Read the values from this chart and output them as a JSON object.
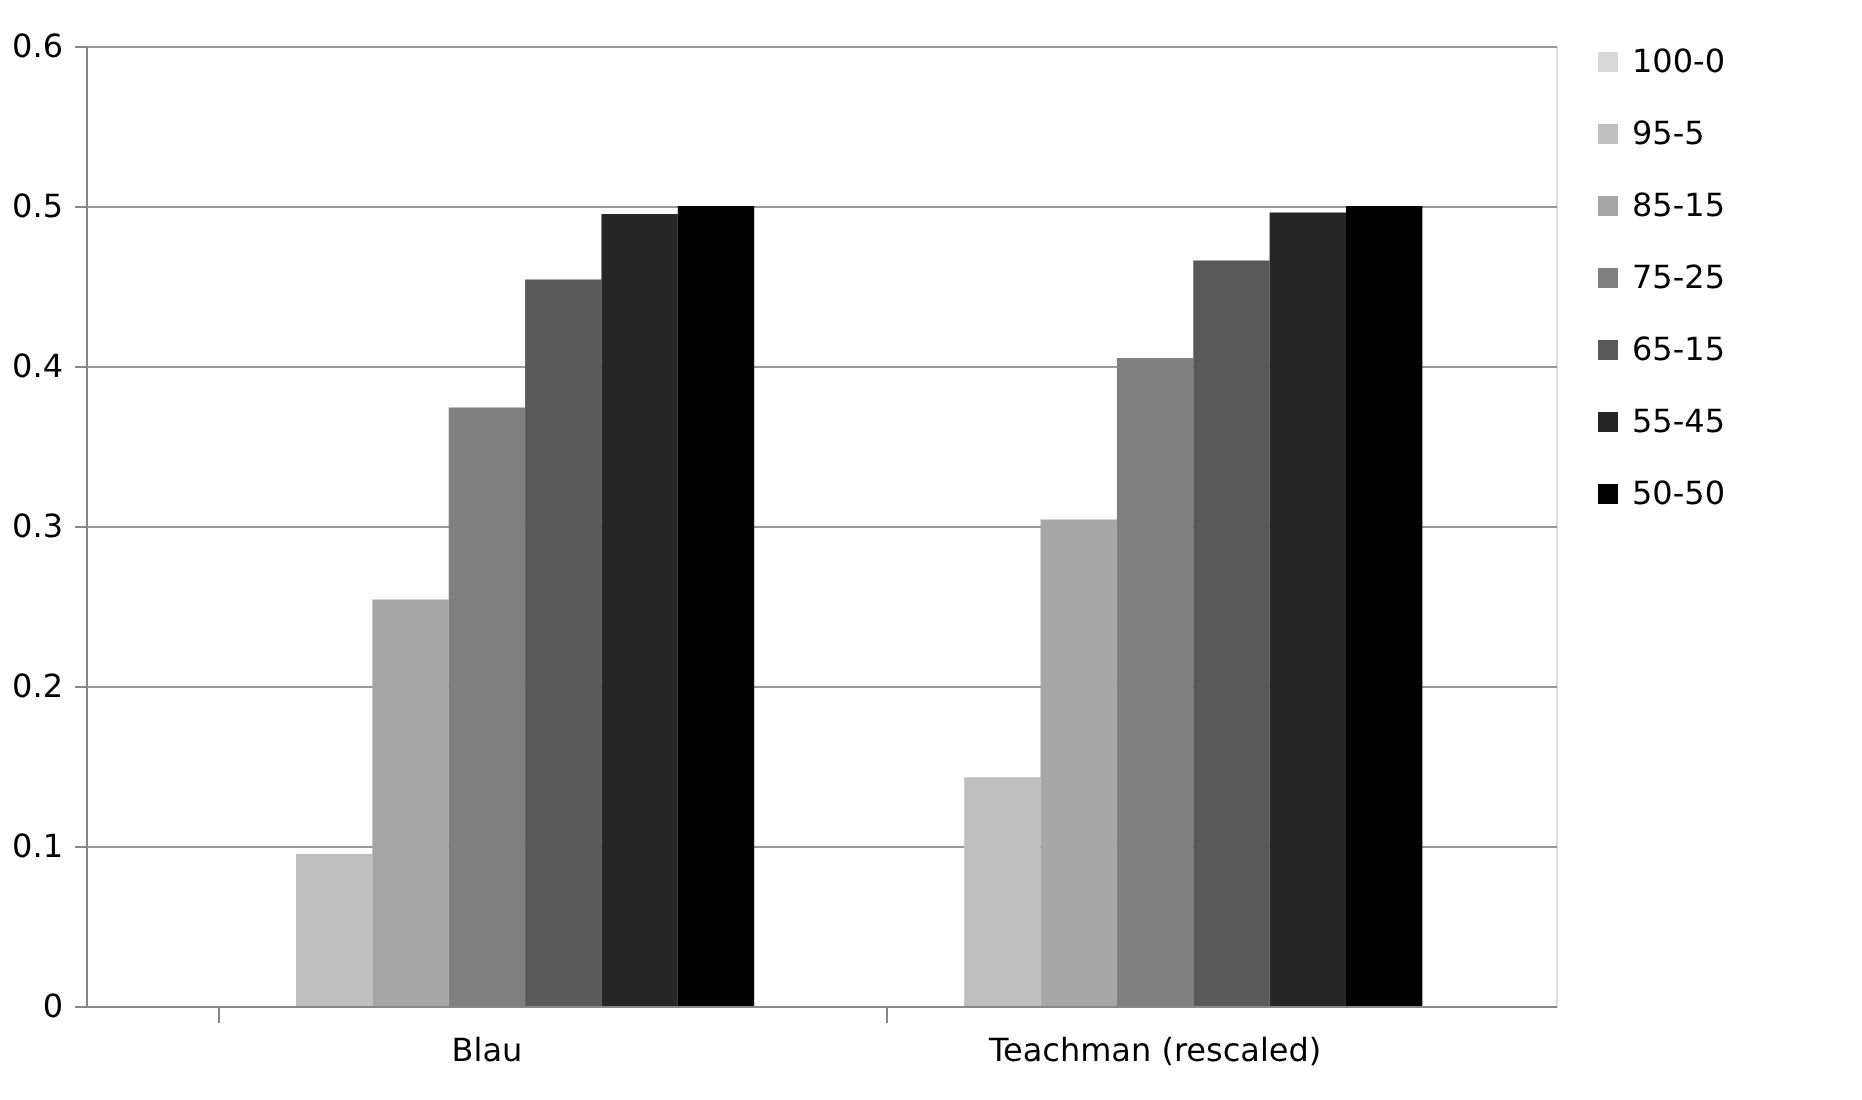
{
  "chart_data": {
    "type": "bar",
    "categories": [
      "Blau",
      "Teachman (rescaled)"
    ],
    "series": [
      {
        "name": "100-0",
        "color": "#d9d9d9",
        "values": [
          0,
          0
        ]
      },
      {
        "name": "95-5",
        "color": "#bfbfbf",
        "values": [
          0.095,
          0.143
        ]
      },
      {
        "name": "85-15",
        "color": "#a6a6a6",
        "values": [
          0.254,
          0.304
        ]
      },
      {
        "name": "75-25",
        "color": "#808080",
        "values": [
          0.374,
          0.405
        ]
      },
      {
        "name": "65-15",
        "color": "#595959",
        "values": [
          0.454,
          0.466
        ]
      },
      {
        "name": "55-45",
        "color": "#262626",
        "values": [
          0.495,
          0.496
        ]
      },
      {
        "name": "50-50",
        "color": "#000000",
        "values": [
          0.5,
          0.5
        ]
      }
    ],
    "ylim": [
      0,
      0.6
    ],
    "yticks": [
      0,
      0.1,
      0.2,
      0.3,
      0.4,
      0.5,
      0.6
    ],
    "grid": "y",
    "legend": "right"
  }
}
